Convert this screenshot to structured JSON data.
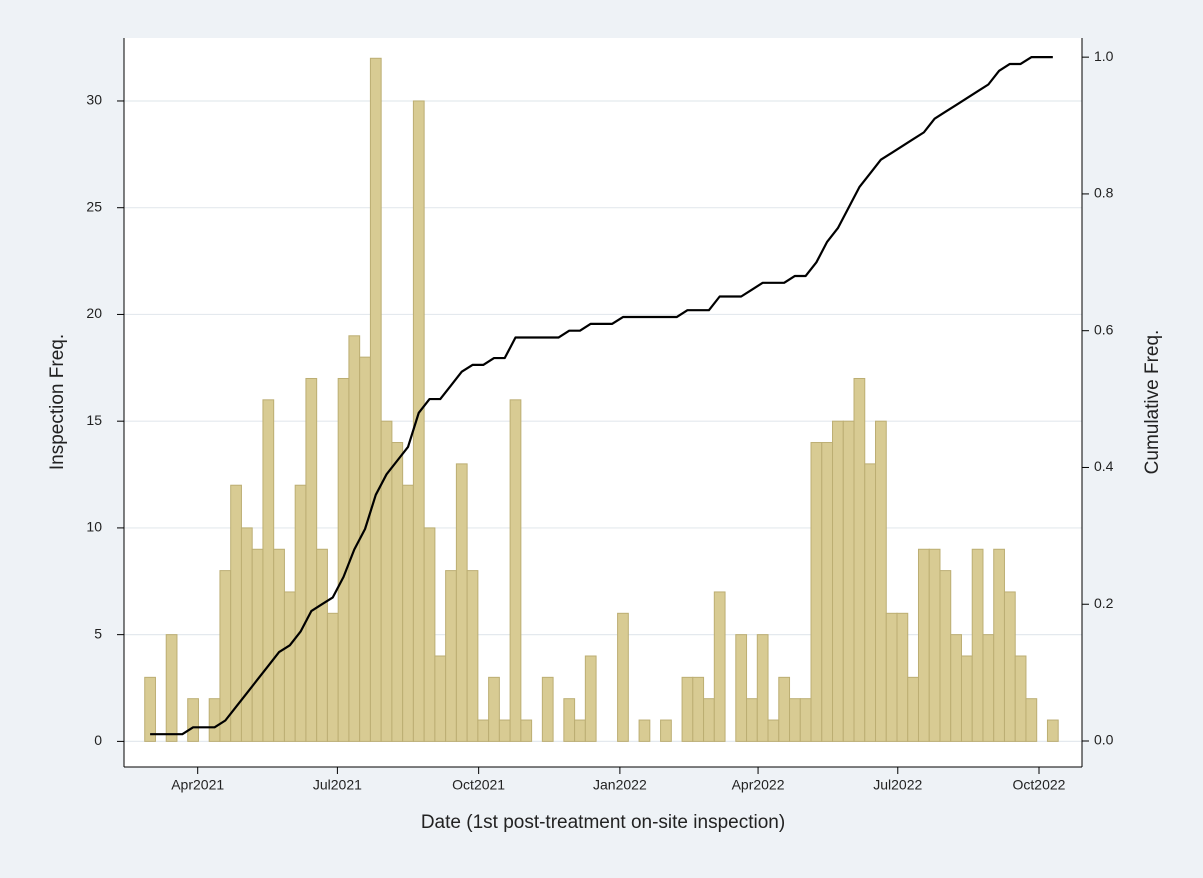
{
  "chart_data": {
    "type": "bar-line",
    "xlabel": "Date (1st post-treatment on-site inspection)",
    "ylabel": "Inspection Freq.",
    "y2label": "Cumulative Freq.",
    "xlim": [
      22323,
      22947
    ],
    "xticks": [
      {
        "value": 22371,
        "label": "Apr2021"
      },
      {
        "value": 22462,
        "label": "Jul2021"
      },
      {
        "value": 22554,
        "label": "Oct2021"
      },
      {
        "value": 22646,
        "label": "Jan2022"
      },
      {
        "value": 22736,
        "label": "Apr2022"
      },
      {
        "value": 22827,
        "label": "Jul2022"
      },
      {
        "value": 22919,
        "label": "Oct2022"
      }
    ],
    "ylim": [
      -1.2,
      32.95
    ],
    "yticks": [
      0,
      5,
      10,
      15,
      20,
      25,
      30
    ],
    "y2lim": [
      -0.038,
      1.028
    ],
    "y2ticks": [
      {
        "value": 0,
        "label": "0.0"
      },
      0.2,
      0.4,
      0.6,
      0.8,
      {
        "value": 1,
        "label": "1.0"
      }
    ],
    "grid": true,
    "x": [
      22340,
      22347,
      22354,
      22361,
      22368,
      22375,
      22382,
      22389,
      22396,
      22403,
      22410,
      22417,
      22424,
      22431,
      22438,
      22445,
      22452,
      22459,
      22466,
      22473,
      22480,
      22487,
      22494,
      22501,
      22508,
      22515,
      22522,
      22529,
      22536,
      22543,
      22550,
      22557,
      22564,
      22571,
      22578,
      22585,
      22592,
      22599,
      22606,
      22613,
      22620,
      22627,
      22634,
      22641,
      22648,
      22655,
      22662,
      22669,
      22676,
      22683,
      22690,
      22697,
      22704,
      22711,
      22718,
      22725,
      22732,
      22739,
      22746,
      22753,
      22760,
      22767,
      22774,
      22781,
      22788,
      22795,
      22802,
      22809,
      22816,
      22823,
      22830,
      22837,
      22844,
      22851,
      22858,
      22865,
      22872,
      22879,
      22886,
      22893,
      22900,
      22907,
      22914,
      22921,
      22928
    ],
    "series": [
      {
        "name": "Inspection Freq.",
        "type": "bar",
        "color": "#d8cb93",
        "values": [
          3,
          0,
          5,
          0,
          2,
          0,
          2,
          8,
          12,
          10,
          9,
          16,
          9,
          7,
          12,
          17,
          9,
          6,
          17,
          19,
          18,
          32,
          15,
          14,
          12,
          30,
          10,
          4,
          8,
          13,
          8,
          1,
          3,
          1,
          16,
          1,
          0,
          3,
          0,
          2,
          1,
          4,
          0,
          0,
          6,
          0,
          1,
          0,
          1,
          0,
          3,
          3,
          2,
          7,
          0,
          5,
          2,
          5,
          1,
          3,
          2,
          2,
          14,
          14,
          15,
          15,
          17,
          13,
          15,
          6,
          6,
          3,
          9,
          9,
          8,
          5,
          4,
          9,
          5,
          9,
          7,
          4,
          2,
          0,
          1
        ]
      },
      {
        "name": "Cumulative Freq.",
        "type": "line",
        "axis": "y2",
        "color": "#000000",
        "values": [
          0.01,
          0.01,
          0.01,
          0.01,
          0.02,
          0.02,
          0.02,
          0.03,
          0.05,
          0.07,
          0.09,
          0.11,
          0.13,
          0.14,
          0.16,
          0.19,
          0.2,
          0.21,
          0.24,
          0.28,
          0.31,
          0.36,
          0.39,
          0.41,
          0.43,
          0.48,
          0.5,
          0.5,
          0.52,
          0.54,
          0.55,
          0.55,
          0.56,
          0.56,
          0.59,
          0.59,
          0.59,
          0.59,
          0.59,
          0.6,
          0.6,
          0.61,
          0.61,
          0.61,
          0.62,
          0.62,
          0.62,
          0.62,
          0.62,
          0.62,
          0.63,
          0.63,
          0.63,
          0.65,
          0.65,
          0.65,
          0.66,
          0.67,
          0.67,
          0.67,
          0.68,
          0.68,
          0.7,
          0.73,
          0.75,
          0.78,
          0.81,
          0.83,
          0.85,
          0.86,
          0.87,
          0.88,
          0.89,
          0.91,
          0.92,
          0.93,
          0.94,
          0.95,
          0.96,
          0.98,
          0.99,
          0.99,
          1.0,
          1.0,
          1.0
        ]
      }
    ]
  }
}
